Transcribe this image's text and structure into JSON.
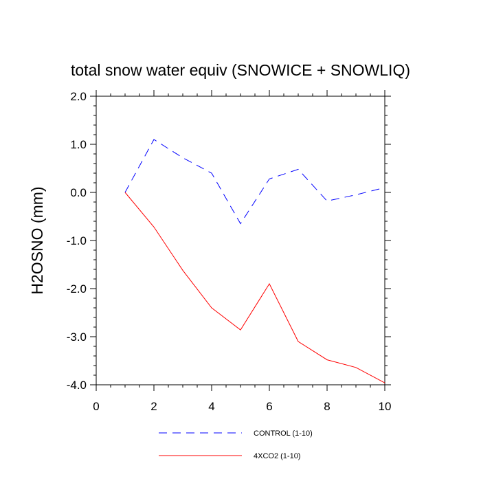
{
  "chart_data": {
    "type": "line",
    "title": "total snow water equiv (SNOWICE + SNOWLIQ)",
    "xlabel": "",
    "ylabel": "H2OSNO  (mm)",
    "xlim": [
      0,
      10
    ],
    "ylim": [
      -4.0,
      2.0
    ],
    "x_ticks": [
      0,
      2,
      4,
      6,
      8,
      10
    ],
    "x_tick_labels": [
      "0",
      "2",
      "4",
      "6",
      "8",
      "10"
    ],
    "y_ticks": [
      2.0,
      1.0,
      0.0,
      -1.0,
      -2.0,
      -3.0,
      -4.0
    ],
    "y_tick_labels": [
      "2.0",
      "1.0",
      "0.0",
      "-1.0",
      "-2.0",
      "-3.0",
      "-4.0"
    ],
    "grid": false,
    "legend_position": "bottom",
    "series": [
      {
        "name": "CONTROL (1-10)",
        "color": "#0000ff",
        "dash": "dashed",
        "x": [
          1,
          2,
          3,
          4,
          5,
          6,
          7,
          8,
          9,
          10
        ],
        "y": [
          0.0,
          1.1,
          0.72,
          0.4,
          -0.65,
          0.28,
          0.48,
          -0.18,
          -0.05,
          0.1
        ]
      },
      {
        "name": "4XCO2 (1-10)",
        "color": "#ff0000",
        "dash": "solid",
        "x": [
          1,
          2,
          3,
          4,
          5,
          6,
          7,
          8,
          9,
          10
        ],
        "y": [
          0.0,
          -0.72,
          -1.62,
          -2.4,
          -2.86,
          -1.9,
          -3.1,
          -3.48,
          -3.64,
          -3.96
        ]
      }
    ]
  }
}
